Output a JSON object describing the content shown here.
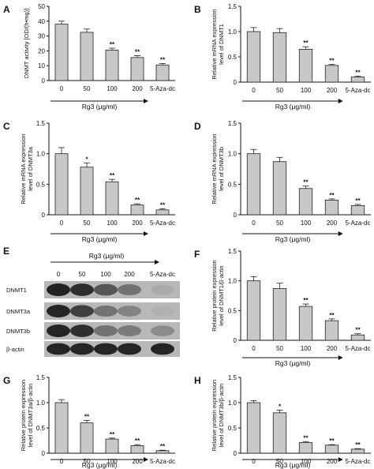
{
  "colors": {
    "bar_fill": "#c8c8c8",
    "bar_stroke": "#222222",
    "axis": "#111111"
  },
  "chart_data": [
    {
      "panel": "A",
      "type": "bar",
      "categories": [
        "0",
        "50",
        "100",
        "200",
        "5-Aza-dc"
      ],
      "values": [
        38,
        32.5,
        20.5,
        15.5,
        10.5
      ],
      "errors": [
        2,
        2.2,
        1.3,
        1.3,
        1
      ],
      "significance": [
        "",
        "",
        "**",
        "**",
        "**"
      ],
      "ylabel": "DNMT activity [OD/(h•mg)]",
      "xlabel": "Rg3 (μg/ml)",
      "ylim": [
        0,
        50
      ],
      "yticks": [
        "0",
        "10",
        "20",
        "30",
        "40",
        "50"
      ]
    },
    {
      "panel": "B",
      "type": "bar",
      "categories": [
        "0",
        "50",
        "100",
        "200",
        "5-Aza-dc"
      ],
      "values": [
        1.0,
        0.98,
        0.65,
        0.33,
        0.1
      ],
      "errors": [
        0.08,
        0.08,
        0.05,
        0.02,
        0.02
      ],
      "significance": [
        "",
        "",
        "**",
        "**",
        "**"
      ],
      "ylabel": "Relative mRNA expression level of DNMT1",
      "xlabel": "Rg3 (μg/ml)",
      "ylim": [
        0,
        1.5
      ],
      "yticks": [
        "0",
        "0.5",
        "1.0",
        "1.5"
      ]
    },
    {
      "panel": "C",
      "type": "bar",
      "categories": [
        "0",
        "50",
        "100",
        "200",
        "5-Aza-dc"
      ],
      "values": [
        1.0,
        0.78,
        0.54,
        0.16,
        0.08
      ],
      "errors": [
        0.1,
        0.07,
        0.04,
        0.02,
        0.02
      ],
      "significance": [
        "",
        "*",
        "**",
        "**",
        "**"
      ],
      "ylabel": "Relative mRNA expression level of DNMT3a",
      "xlabel": "Rg3 (μg/ml)",
      "ylim": [
        0,
        1.5
      ],
      "yticks": [
        "0",
        "0.5",
        "1.0",
        "1.5"
      ]
    },
    {
      "panel": "D",
      "type": "bar",
      "categories": [
        "0",
        "50",
        "100",
        "200",
        "5-Aza-dc"
      ],
      "values": [
        1.0,
        0.87,
        0.43,
        0.24,
        0.15
      ],
      "errors": [
        0.07,
        0.07,
        0.04,
        0.02,
        0.02
      ],
      "significance": [
        "",
        "",
        "**",
        "**",
        "**"
      ],
      "ylabel": "Relative mRNA expression level of DNMT3b",
      "xlabel": "Rg3 (μg/ml)",
      "ylim": [
        0,
        1.5
      ],
      "yticks": [
        "0",
        "0.5",
        "1.0",
        "1.5"
      ]
    },
    {
      "panel": "F",
      "type": "bar",
      "categories": [
        "0",
        "50",
        "100",
        "200",
        "5-Aza-dc"
      ],
      "values": [
        1.0,
        0.87,
        0.57,
        0.33,
        0.09
      ],
      "errors": [
        0.07,
        0.09,
        0.04,
        0.03,
        0.02
      ],
      "significance": [
        "",
        "",
        "**",
        "**",
        "**"
      ],
      "ylabel": "Relative protein expression level of DNMT1/β-actin",
      "xlabel": "Rg3 (μg/ml)",
      "ylim": [
        0,
        1.5
      ],
      "yticks": [
        "0",
        "0.5",
        "1.0",
        "1.5"
      ]
    },
    {
      "panel": "G",
      "type": "bar",
      "categories": [
        "0",
        "50",
        "100",
        "200",
        "5-Aza-dc"
      ],
      "values": [
        1.0,
        0.6,
        0.28,
        0.15,
        0.05
      ],
      "errors": [
        0.06,
        0.05,
        0.02,
        0.02,
        0.01
      ],
      "significance": [
        "",
        "**",
        "**",
        "**",
        "**"
      ],
      "ylabel": "Relative protein expression level of DNMT3a/β-actin",
      "xlabel": "Rg3 (μg/ml)",
      "ylim": [
        0,
        1.5
      ],
      "yticks": [
        "0",
        "0.5",
        "1.0",
        "1.5"
      ]
    },
    {
      "panel": "H",
      "type": "bar",
      "categories": [
        "0",
        "50",
        "100",
        "200",
        "5-Aza-dc"
      ],
      "values": [
        1.0,
        0.8,
        0.21,
        0.16,
        0.08
      ],
      "errors": [
        0.04,
        0.05,
        0.02,
        0.01,
        0.01
      ],
      "significance": [
        "",
        "*",
        "**",
        "**",
        "**"
      ],
      "ylabel": "Relative protein expression level of DNMT3b/β-actin",
      "xlabel": "Rg3 (μg/ml)",
      "ylim": [
        0,
        1.5
      ],
      "yticks": [
        "0",
        "0.5",
        "1.0",
        "1.5"
      ]
    }
  ],
  "blot": {
    "panel": "E",
    "header": "Rg3 (μg/ml)",
    "lanes": [
      "0",
      "50",
      "100",
      "200",
      "5-Aza-dc"
    ],
    "rows": [
      {
        "label": "DNMT1",
        "intensity": [
          0.92,
          0.85,
          0.62,
          0.45,
          0.12
        ]
      },
      {
        "label": "DNMT3a",
        "intensity": [
          0.9,
          0.75,
          0.45,
          0.35,
          0.08
        ]
      },
      {
        "label": "DNMT3b",
        "intensity": [
          0.9,
          0.85,
          0.45,
          0.4,
          0.3
        ]
      },
      {
        "label": "β-actin",
        "intensity": [
          0.9,
          0.9,
          0.9,
          0.9,
          0.9
        ]
      }
    ]
  }
}
